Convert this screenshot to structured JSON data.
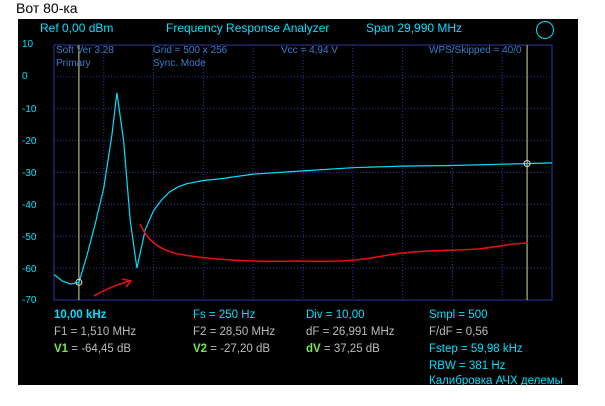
{
  "caption": "Вот 80-ка",
  "header": {
    "ref": "Ref  0,00 dBm",
    "title": "Frequency Response Analyzer",
    "span": "Span 29,990 MHz"
  },
  "info": {
    "soft_ver": "Soft Ver 3.28",
    "mode_primary": "Primary",
    "grid": "Grid = 500 x 256",
    "sync": "Sync. Mode",
    "vcc": "Vcc = 4,94 V",
    "wps": "WPS/Skipped  = 40/0"
  },
  "y_axis": [
    "10",
    "0",
    "-10",
    "-20",
    "-30",
    "-40",
    "-50",
    "-60",
    "-70"
  ],
  "status": {
    "start_freq": "10,00 kHz",
    "fs": "Fs = 250 Hz",
    "div": "Div = 10,00",
    "smpl": "Smpl = 500",
    "f1_label": "F1 = 1,510 MHz",
    "f2_label": "F2 = 28,50 MHz",
    "df_label": "dF = 26,991 MHz",
    "fdf_label": "F/dF = 0,56",
    "v1_name": "V1",
    "v1_val": "= -64,45 dB",
    "v2_name": "V2",
    "v2_val": "= -27,20 dB",
    "dv_name": "dV",
    "dv_val": "= 37,25 dB",
    "fstep": "Fstep = 59,98 kHz",
    "rbw": "RBW = 381 Hz",
    "calib": "Калибровка АЧХ делемы"
  },
  "colors": {
    "trace": "#00e0ff",
    "grid": "#2a3aa0",
    "annotation": "#e01010"
  },
  "chart_data": {
    "type": "line",
    "ylim": [
      -70,
      10
    ],
    "xlim_mhz": [
      0.01,
      30.0
    ],
    "markers": [
      {
        "name": "F1",
        "x_mhz": 1.51,
        "y_db": -64.45
      },
      {
        "name": "F2",
        "x_mhz": 28.5,
        "y_db": -27.2
      }
    ],
    "series": [
      {
        "x": [
          0.01,
          0.5,
          1.0,
          1.51,
          2.0,
          2.5,
          3.0,
          3.5,
          3.8,
          4.2,
          4.6,
          5.0,
          5.5,
          6.0,
          6.5,
          7.0,
          7.5,
          8.0,
          9.0,
          10.0,
          12.0,
          15.0,
          18.0,
          21.0,
          24.0,
          27.0,
          28.5,
          30.0
        ],
        "y": [
          -62,
          -64,
          -65,
          -64.45,
          -56,
          -46,
          -35,
          -18,
          -5,
          -20,
          -45,
          -60,
          -48,
          -42,
          -38.5,
          -36,
          -34.5,
          -33.5,
          -32.5,
          -32,
          -30.5,
          -29.5,
          -28.5,
          -28,
          -27.8,
          -27.4,
          -27.2,
          -27
        ]
      }
    ]
  }
}
